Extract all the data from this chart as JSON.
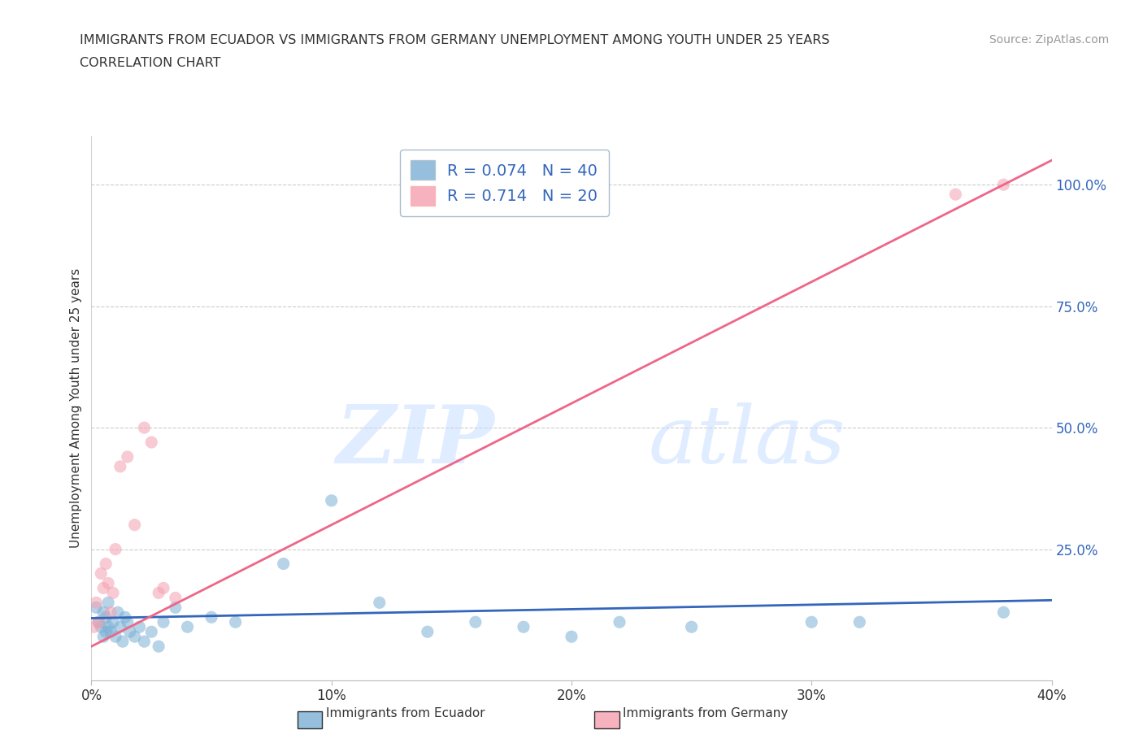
{
  "title_line1": "IMMIGRANTS FROM ECUADOR VS IMMIGRANTS FROM GERMANY UNEMPLOYMENT AMONG YOUTH UNDER 25 YEARS",
  "title_line2": "CORRELATION CHART",
  "source": "Source: ZipAtlas.com",
  "ylabel": "Unemployment Among Youth under 25 years",
  "watermark_zip": "ZIP",
  "watermark_atlas": "atlas",
  "xlim": [
    0.0,
    0.4
  ],
  "ylim": [
    -0.02,
    1.1
  ],
  "xticks": [
    0.0,
    0.1,
    0.2,
    0.3,
    0.4
  ],
  "yticks_right": [
    0.25,
    0.5,
    0.75,
    1.0
  ],
  "ecuador_color": "#7BAFD4",
  "germany_color": "#F4A0B0",
  "ecuador_line_color": "#3366BB",
  "germany_line_color": "#EE6688",
  "legend_color": "#3366BB",
  "legend_r1": "R = 0.074   N = 40",
  "legend_r2": "R = 0.714   N = 20",
  "ecuador_scatter_x": [
    0.002,
    0.003,
    0.004,
    0.005,
    0.005,
    0.006,
    0.006,
    0.007,
    0.007,
    0.008,
    0.009,
    0.01,
    0.011,
    0.012,
    0.013,
    0.014,
    0.015,
    0.016,
    0.018,
    0.02,
    0.022,
    0.025,
    0.028,
    0.03,
    0.035,
    0.04,
    0.05,
    0.06,
    0.08,
    0.1,
    0.12,
    0.14,
    0.16,
    0.18,
    0.2,
    0.22,
    0.25,
    0.3,
    0.32,
    0.38
  ],
  "ecuador_scatter_y": [
    0.13,
    0.1,
    0.09,
    0.07,
    0.12,
    0.08,
    0.11,
    0.09,
    0.14,
    0.08,
    0.1,
    0.07,
    0.12,
    0.09,
    0.06,
    0.11,
    0.1,
    0.08,
    0.07,
    0.09,
    0.06,
    0.08,
    0.05,
    0.1,
    0.13,
    0.09,
    0.11,
    0.1,
    0.22,
    0.35,
    0.14,
    0.08,
    0.1,
    0.09,
    0.07,
    0.1,
    0.09,
    0.1,
    0.1,
    0.12
  ],
  "germany_scatter_x": [
    0.001,
    0.002,
    0.003,
    0.004,
    0.005,
    0.006,
    0.007,
    0.008,
    0.009,
    0.01,
    0.012,
    0.015,
    0.018,
    0.022,
    0.025,
    0.028,
    0.03,
    0.035,
    0.36,
    0.38
  ],
  "germany_scatter_y": [
    0.09,
    0.14,
    0.1,
    0.2,
    0.17,
    0.22,
    0.18,
    0.12,
    0.16,
    0.25,
    0.42,
    0.44,
    0.3,
    0.5,
    0.47,
    0.16,
    0.17,
    0.15,
    0.98,
    1.0
  ],
  "ecuador_trendline_x": [
    0.0,
    0.4
  ],
  "ecuador_trendline_y": [
    0.108,
    0.145
  ],
  "germany_trendline_x": [
    0.0,
    0.4
  ],
  "germany_trendline_y": [
    0.05,
    1.05
  ],
  "grid_color": "#CCCCCC",
  "bg_color": "#FFFFFF",
  "axis_color": "#BBBBBB",
  "tick_label_color": "#333333"
}
